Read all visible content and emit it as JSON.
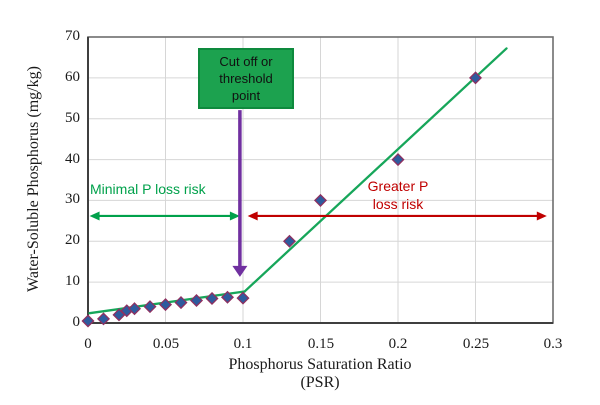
{
  "colors": {
    "trend_green": "#17a65a",
    "minimal_green": "#00a14b",
    "risk_red": "#c00000",
    "cutoff_purple": "#7030a0",
    "box_fill": "#1ca24f",
    "box_border": "#0e8a3d",
    "marker_fill": "#2e5b9e",
    "marker_stroke": "#8e3060",
    "grid": "#d6d6d6",
    "axis_border": "#6e6e6e",
    "axis_dark": "#3f3f3f"
  },
  "chart_data": {
    "type": "scatter",
    "title": "",
    "xlabel": "Phosphorus Saturation Ratio",
    "xlabel_line2": "(PSR)",
    "ylabel": "Water-Soluble Phosphorus (mg/kg)",
    "x_range": [
      0,
      0.3
    ],
    "y_range": [
      0,
      70
    ],
    "grid": true,
    "x_ticks": [
      0,
      0.05,
      0.1,
      0.15,
      0.2,
      0.25,
      0.3
    ],
    "x_tick_labels": [
      "0",
      "0.05",
      "0.1",
      "0.15",
      "0.2",
      "0.25",
      "0.3"
    ],
    "y_ticks": [
      0,
      10,
      20,
      30,
      40,
      50,
      60,
      70
    ],
    "y_tick_labels": [
      "0",
      "10",
      "20",
      "30",
      "40",
      "50",
      "60",
      "70"
    ],
    "points": [
      [
        0,
        0.5
      ],
      [
        0.01,
        1
      ],
      [
        0.02,
        2
      ],
      [
        0.025,
        3
      ],
      [
        0.03,
        3.5
      ],
      [
        0.04,
        4
      ],
      [
        0.05,
        4.5
      ],
      [
        0.06,
        5
      ],
      [
        0.07,
        5.5
      ],
      [
        0.08,
        6
      ],
      [
        0.09,
        6.3
      ],
      [
        0.1,
        6.1
      ],
      [
        0.13,
        20
      ],
      [
        0.15,
        30
      ],
      [
        0.2,
        40
      ],
      [
        0.25,
        60
      ]
    ],
    "trend_lines": [
      {
        "x1": 0.001,
        "y1": 2.4,
        "x2": 0.101,
        "y2": 7.7
      },
      {
        "x1": 0.101,
        "y1": 7.7,
        "x2": 0.27,
        "y2": 67.2
      }
    ],
    "annotations": {
      "cutoff_box_line1": "Cut off or",
      "cutoff_box_line2": "threshold",
      "cutoff_box_line3": "point",
      "minimal_label": "Minimal P loss risk",
      "greater_label_line1": "Greater P",
      "greater_label_line2": "loss risk",
      "risk_arrows": [
        {
          "name": "minimal",
          "from_x": 0.001,
          "to_x": 0.098,
          "y": 26.2,
          "color_key": "minimal_green"
        },
        {
          "name": "greater",
          "from_x": 0.103,
          "to_x": 0.296,
          "y": 26.2,
          "color_key": "risk_red"
        }
      ],
      "cutoff_arrow": {
        "x": 0.098,
        "from_y": 52.1,
        "to_y": 11.3
      }
    }
  }
}
